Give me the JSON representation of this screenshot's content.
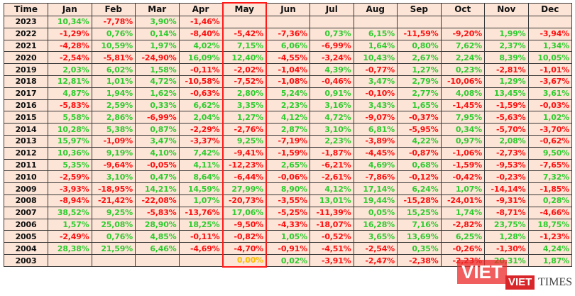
{
  "colors": {
    "positive": "#2fcc2f",
    "negative": "#ff1010",
    "zero": "#ffbb00",
    "header_bg": "#fce4d6",
    "highlight_border": "#ff1a1a"
  },
  "highlight_column": "May",
  "headers": [
    "Time",
    "Jan",
    "Feb",
    "Mar",
    "Apr",
    "May",
    "Jun",
    "Jul",
    "Aug",
    "Sep",
    "Oct",
    "Nov",
    "Dec"
  ],
  "rows": [
    {
      "year": "2023",
      "values": [
        "10,34%",
        "-7,78%",
        "3,90%",
        "-1,46%",
        "",
        "",
        "",
        "",
        "",
        "",
        "",
        ""
      ]
    },
    {
      "year": "2022",
      "values": [
        "-1,29%",
        "0,76%",
        "0,14%",
        "-8,40%",
        "-5,42%",
        "-7,36%",
        "0,73%",
        "6,15%",
        "-11,59%",
        "-9,20%",
        "1,99%",
        "-3,94%"
      ]
    },
    {
      "year": "2021",
      "values": [
        "-4,28%",
        "10,59%",
        "1,97%",
        "4,02%",
        "7,15%",
        "6,06%",
        "-6,99%",
        "1,64%",
        "0,80%",
        "7,62%",
        "2,37%",
        "1,34%"
      ]
    },
    {
      "year": "2020",
      "values": [
        "-2,54%",
        "-5,81%",
        "-24,90%",
        "16,09%",
        "12,40%",
        "-4,55%",
        "-3,24%",
        "10,43%",
        "2,67%",
        "2,24%",
        "8,39%",
        "10,05%"
      ]
    },
    {
      "year": "2019",
      "values": [
        "2,03%",
        "6,02%",
        "1,58%",
        "-0,11%",
        "-2,02%",
        "-1,04%",
        "4,39%",
        "-0,77%",
        "1,27%",
        "0,23%",
        "-2,81%",
        "-1,01%"
      ]
    },
    {
      "year": "2018",
      "values": [
        "12,81%",
        "1,01%",
        "4,72%",
        "-10,58%",
        "-7,52%",
        "-1,08%",
        "-0,46%",
        "3,47%",
        "2,79%",
        "-10,06%",
        "1,29%",
        "-3,67%"
      ]
    },
    {
      "year": "2017",
      "values": [
        "4,87%",
        "1,94%",
        "1,62%",
        "-0,63%",
        "2,80%",
        "5,24%",
        "0,91%",
        "-0,10%",
        "2,77%",
        "4,08%",
        "13,45%",
        "3,61%"
      ]
    },
    {
      "year": "2016",
      "values": [
        "-5,83%",
        "2,59%",
        "0,33%",
        "6,62%",
        "3,35%",
        "2,23%",
        "3,16%",
        "3,43%",
        "1,65%",
        "-1,45%",
        "-1,59%",
        "-0,03%"
      ]
    },
    {
      "year": "2015",
      "values": [
        "5,58%",
        "2,86%",
        "-6,99%",
        "2,04%",
        "1,27%",
        "4,12%",
        "4,72%",
        "-9,07%",
        "-0,37%",
        "7,95%",
        "-5,63%",
        "1,02%"
      ]
    },
    {
      "year": "2014",
      "values": [
        "10,28%",
        "5,38%",
        "0,87%",
        "-2,29%",
        "-2,76%",
        "2,87%",
        "3,10%",
        "6,81%",
        "-5,95%",
        "0,34%",
        "-5,70%",
        "-3,70%"
      ]
    },
    {
      "year": "2013",
      "values": [
        "15,97%",
        "-1,09%",
        "3,47%",
        "-3,37%",
        "9,25%",
        "-7,19%",
        "2,23%",
        "-3,89%",
        "4,22%",
        "0,97%",
        "2,08%",
        "-0,62%"
      ]
    },
    {
      "year": "2012",
      "values": [
        "10,36%",
        "9,19%",
        "4,10%",
        "7,42%",
        "-9,41%",
        "-1,59%",
        "-1,87%",
        "-4,45%",
        "-0,87%",
        "-1,06%",
        "-2,73%",
        "9,50%"
      ]
    },
    {
      "year": "2011",
      "values": [
        "5,35%",
        "-9,64%",
        "-0,05%",
        "4,11%",
        "-12,23%",
        "2,65%",
        "-6,21%",
        "4,69%",
        "0,68%",
        "-1,59%",
        "-9,53%",
        "-7,65%"
      ]
    },
    {
      "year": "2010",
      "values": [
        "-2,59%",
        "3,10%",
        "0,47%",
        "8,64%",
        "-6,44%",
        "-0,06%",
        "-2,61%",
        "-7,86%",
        "-0,12%",
        "-0,42%",
        "-0,23%",
        "7,32%"
      ]
    },
    {
      "year": "2009",
      "values": [
        "-3,93%",
        "-18,95%",
        "14,21%",
        "14,59%",
        "27,99%",
        "8,90%",
        "4,12%",
        "17,14%",
        "6,24%",
        "1,07%",
        "-14,14%",
        "-1,85%"
      ]
    },
    {
      "year": "2008",
      "values": [
        "-8,94%",
        "-21,42%",
        "-22,08%",
        "1,07%",
        "-20,73%",
        "-3,55%",
        "13,01%",
        "19,44%",
        "-15,28%",
        "-24,01%",
        "-9,31%",
        "0,28%"
      ]
    },
    {
      "year": "2007",
      "values": [
        "38,52%",
        "9,25%",
        "-5,83%",
        "-13,76%",
        "17,06%",
        "-5,25%",
        "-11,39%",
        "0,05%",
        "15,25%",
        "1,74%",
        "-8,71%",
        "-4,66%"
      ]
    },
    {
      "year": "2006",
      "values": [
        "1,57%",
        "25,08%",
        "28,90%",
        "18,25%",
        "-9,50%",
        "-4,33%",
        "-18,07%",
        "16,28%",
        "7,16%",
        "-2,82%",
        "23,75%",
        "18,75%"
      ]
    },
    {
      "year": "2005",
      "values": [
        "-2,49%",
        "0,76%",
        "4,85%",
        "-0,11%",
        "-0,82%",
        "1,05%",
        "-0,52%",
        "3,65%",
        "13,69%",
        "6,25%",
        "1,28%",
        "-1,23%"
      ]
    },
    {
      "year": "2004",
      "values": [
        "28,38%",
        "21,59%",
        "6,46%",
        "-4,69%",
        "-4,70%",
        "-0,91%",
        "-4,51%",
        "-2,54%",
        "0,35%",
        "-0,26%",
        "-1,30%",
        "4,24%"
      ]
    },
    {
      "year": "2003",
      "values": [
        "",
        "",
        "",
        "",
        "0,00%",
        "0,02%",
        "-3,91%",
        "-2,47%",
        "-2,38%",
        "-2,23%",
        "20,31%",
        "1,87%"
      ]
    }
  ],
  "watermark": {
    "text1": "VIET",
    "text2": "VIET",
    "text3": "TIMES"
  }
}
